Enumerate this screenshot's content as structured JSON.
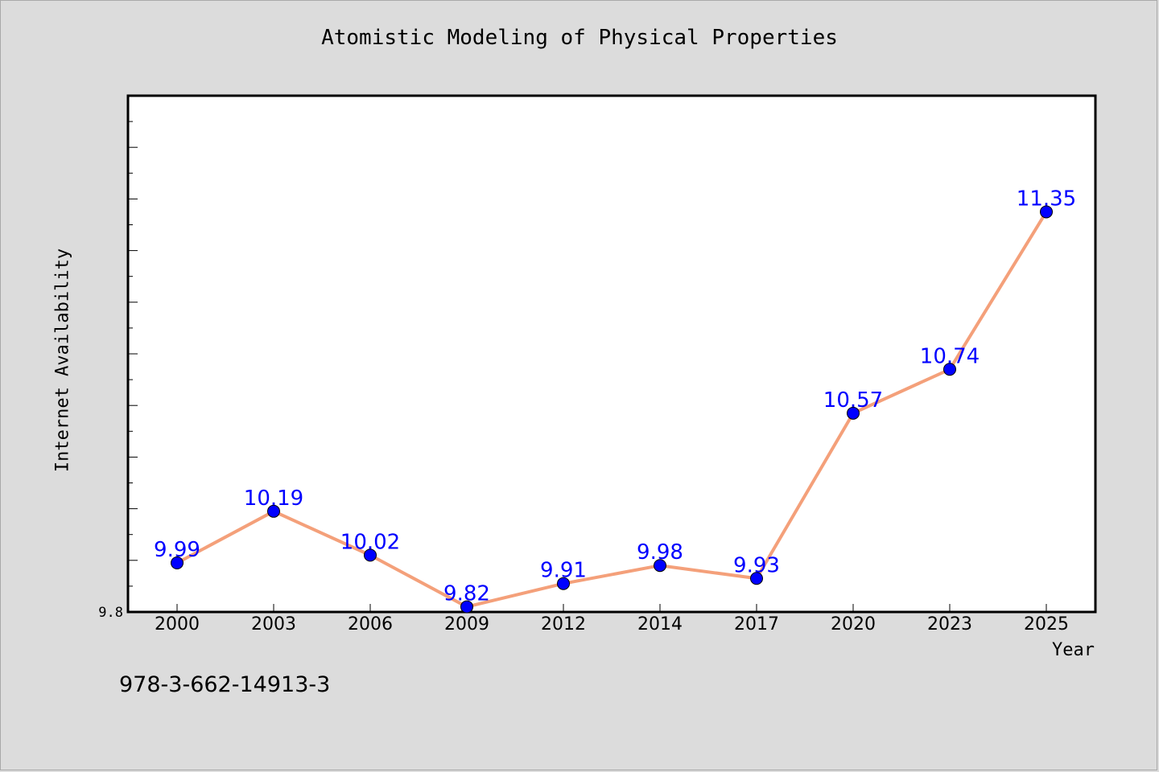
{
  "chart_data": {
    "type": "line",
    "title": "Atomistic Modeling of Physical Properties",
    "xlabel": "Year",
    "ylabel": "Internet Availability",
    "categories": [
      "2000",
      "2003",
      "2006",
      "2009",
      "2012",
      "2014",
      "2017",
      "2020",
      "2023",
      "2025"
    ],
    "series": [
      {
        "values": [
          9.99,
          10.19,
          10.02,
          9.82,
          9.91,
          9.98,
          9.93,
          10.57,
          10.74,
          11.35
        ]
      }
    ],
    "data_labels": [
      "9.99",
      "10.19",
      "10.02",
      "9.82",
      "9.91",
      "9.98",
      "9.93",
      "10.57",
      "10.74",
      "11.35"
    ],
    "y_tick_labels": [
      "9.8"
    ],
    "ylim": [
      9.8,
      11.8
    ],
    "grid": false,
    "legend": "none",
    "colors": {
      "line": "#f4a07a",
      "marker": "#0000ff",
      "label": "#0000ff",
      "plot_background": "#ffffff",
      "page_background": "#dcdcdc"
    }
  },
  "footer": {
    "isbn": "978-3-662-14913-3"
  }
}
